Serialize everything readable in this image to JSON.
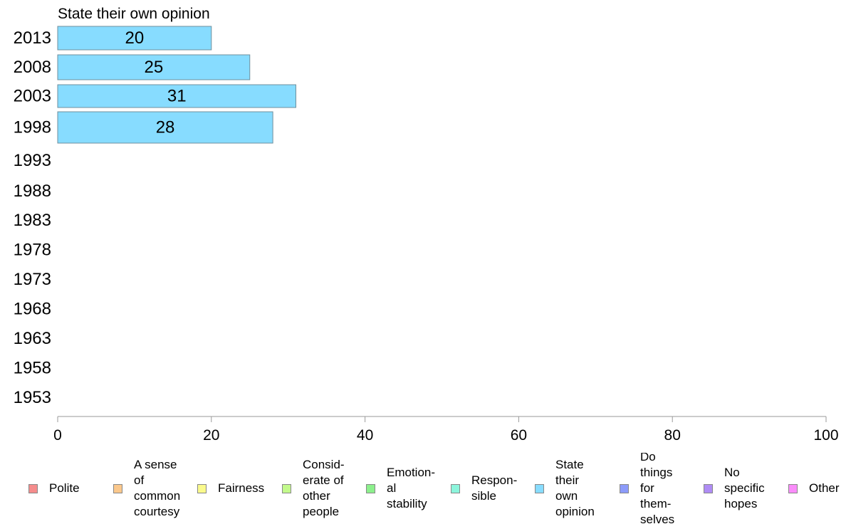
{
  "chart_data": {
    "type": "bar",
    "orientation": "horizontal",
    "title": "State their own opinion",
    "categories": [
      "2013",
      "2008",
      "2003",
      "1998",
      "1993",
      "1988",
      "1983",
      "1978",
      "1973",
      "1968",
      "1963",
      "1958",
      "1953"
    ],
    "series": [
      {
        "name": "State their\nown\nopinion",
        "color": "#87dcff",
        "values": [
          20,
          25,
          31,
          28,
          null,
          null,
          null,
          null,
          null,
          null,
          null,
          null,
          null
        ]
      }
    ],
    "xlim": [
      0,
      100
    ],
    "xticks": [
      "0",
      "20",
      "40",
      "60",
      "80",
      "100"
    ],
    "grid": false,
    "legend_position": "bottom"
  },
  "legend": {
    "items": [
      {
        "label": "Polite",
        "color": "#f58c8c"
      },
      {
        "label": "A sense\nof\ncommon\ncourtesy",
        "color": "#fbc88c"
      },
      {
        "label": "Fairness",
        "color": "#fafa8c"
      },
      {
        "label": "Consid-\nerate of\nother\npeople",
        "color": "#c3fa8c"
      },
      {
        "label": "Emotion-\nal\nstability",
        "color": "#8cf08c"
      },
      {
        "label": "Respon-\nsible",
        "color": "#8cf5dc"
      },
      {
        "label": "State\ntheir\nown\nopinion",
        "color": "#87dcff"
      },
      {
        "label": "Do\nthings\nfor\nthem-\nselves",
        "color": "#8c9bfa"
      },
      {
        "label": "No\nspecific\nhopes",
        "color": "#af8cf5"
      },
      {
        "label": "Other",
        "color": "#fa8cfa"
      }
    ]
  }
}
